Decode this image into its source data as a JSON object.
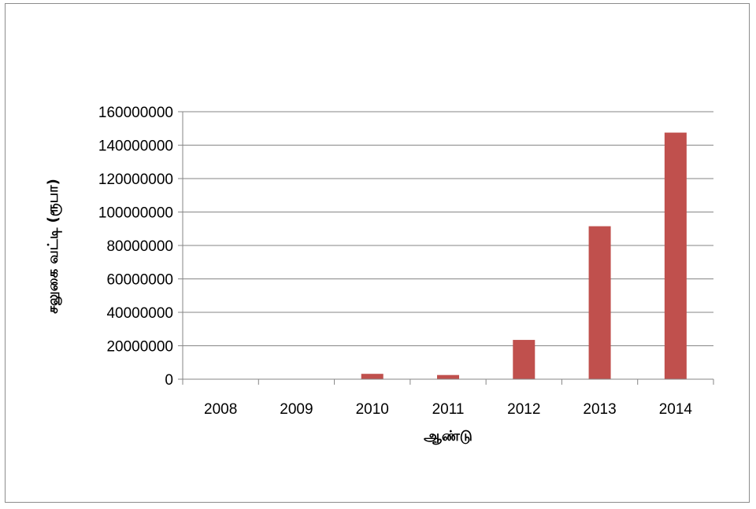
{
  "chart_data": {
    "type": "bar",
    "title": "",
    "xlabel": "ஆண்டு",
    "ylabel": "சலுகை வட்டி (ரூபா)",
    "categories": [
      "2008",
      "2009",
      "2010",
      "2011",
      "2012",
      "2013",
      "2014"
    ],
    "series": [
      {
        "values": [
          0,
          0,
          3200000,
          2500000,
          23500000,
          91500000,
          147500000
        ]
      }
    ],
    "ylim": [
      0,
      160000000
    ],
    "yticks": [
      "0",
      "20000000",
      "40000000",
      "60000000",
      "80000000",
      "100000000",
      "120000000",
      "140000000",
      "160000000"
    ],
    "grid": true,
    "legend": "none",
    "bar_color": "#C0504D"
  }
}
